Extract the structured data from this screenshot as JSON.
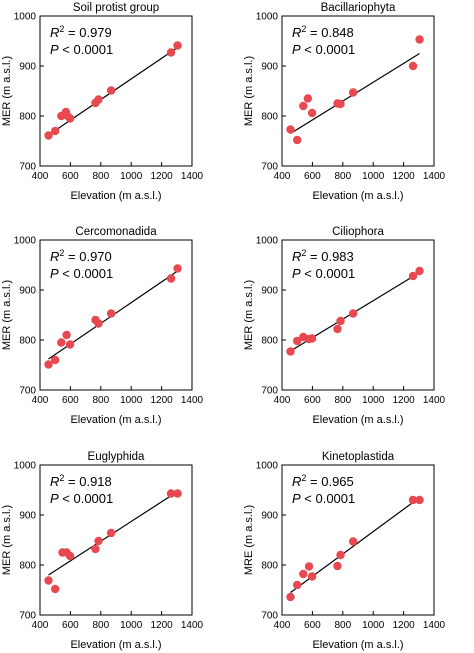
{
  "colors": {
    "point": "#e8484f",
    "line": "#000000",
    "axis": "#000000"
  },
  "chart_data": [
    {
      "type": "scatter",
      "title": "Soil protist group",
      "xlabel": "Elevation  (m a.s.l.)",
      "ylabel": "MER  (m a.s.l.)",
      "r2_label": "= 0.979",
      "p_label": "< 0.0001",
      "xlim": [
        400,
        1400
      ],
      "ylim": [
        700,
        1000
      ],
      "xticks": [
        "400",
        "600",
        "800",
        "1000",
        "1200",
        "1400"
      ],
      "yticks": [
        "700",
        "800",
        "900",
        "1000"
      ],
      "x": [
        456,
        500,
        540,
        570,
        578,
        598,
        765,
        785,
        868,
        1262,
        1305
      ],
      "y": [
        761,
        770,
        800,
        808,
        801,
        795,
        826,
        833,
        851,
        927,
        941
      ],
      "fit": {
        "x": [
          456,
          1305
        ],
        "y": [
          762,
          937
        ]
      }
    },
    {
      "type": "scatter",
      "title": "Bacillariophyta",
      "xlabel": "Elevation  (m a.s.l.)",
      "ylabel": "MER  (m a.s.l.)",
      "r2_label": "= 0.848",
      "p_label": "< 0.0001",
      "xlim": [
        400,
        1400
      ],
      "ylim": [
        700,
        1000
      ],
      "xticks": [
        "400",
        "600",
        "800",
        "1000",
        "1200",
        "1400"
      ],
      "yticks": [
        "700",
        "800",
        "900",
        "1000"
      ],
      "x": [
        456,
        500,
        540,
        570,
        598,
        765,
        785,
        868,
        1262,
        1305
      ],
      "y": [
        773,
        752,
        820,
        835,
        806,
        825,
        824,
        847,
        900,
        953
      ],
      "fit": {
        "x": [
          456,
          1305
        ],
        "y": [
          765,
          925
        ]
      }
    },
    {
      "type": "scatter",
      "title": "Cercomonadida",
      "xlabel": "Elevation  (m a.s.l.)",
      "ylabel": "MER  (m a.s.l.)",
      "r2_label": "= 0.970",
      "p_label": "< 0.0001",
      "xlim": [
        400,
        1400
      ],
      "ylim": [
        700,
        1000
      ],
      "xticks": [
        "400",
        "600",
        "800",
        "1000",
        "1200",
        "1400"
      ],
      "yticks": [
        "700",
        "800",
        "900",
        "1000"
      ],
      "x": [
        456,
        500,
        540,
        575,
        598,
        765,
        785,
        868,
        1262,
        1305
      ],
      "y": [
        751,
        760,
        795,
        810,
        791,
        840,
        833,
        853,
        923,
        943
      ],
      "fit": {
        "x": [
          456,
          1305
        ],
        "y": [
          762,
          938
        ]
      }
    },
    {
      "type": "scatter",
      "title": "Ciliophora",
      "xlabel": "Elevation  (m a.s.l.)",
      "ylabel": "MER  (m a.s.l.)",
      "r2_label": "= 0.983",
      "p_label": "< 0.0001",
      "xlim": [
        400,
        1400
      ],
      "ylim": [
        700,
        1000
      ],
      "xticks": [
        "400",
        "600",
        "800",
        "1000",
        "1200",
        "1400"
      ],
      "yticks": [
        "700",
        "800",
        "900",
        "1000"
      ],
      "x": [
        456,
        500,
        540,
        578,
        598,
        765,
        785,
        868,
        1262,
        1305
      ],
      "y": [
        777,
        798,
        806,
        802,
        803,
        822,
        838,
        853,
        928,
        938
      ],
      "fit": {
        "x": [
          456,
          1305
        ],
        "y": [
          778,
          935
        ]
      }
    },
    {
      "type": "scatter",
      "title": "Euglyphida",
      "xlabel": "Elevation  (m a.s.l.)",
      "ylabel": "MER  (m a.s.l.)",
      "r2_label": "= 0.918",
      "p_label": "< 0.0001",
      "xlim": [
        400,
        1400
      ],
      "ylim": [
        700,
        1000
      ],
      "xticks": [
        "400",
        "600",
        "800",
        "1000",
        "1200",
        "1400"
      ],
      "yticks": [
        "700",
        "800",
        "900",
        "1000"
      ],
      "x": [
        456,
        500,
        548,
        575,
        598,
        765,
        785,
        868,
        1262,
        1305
      ],
      "y": [
        769,
        752,
        825,
        825,
        818,
        832,
        848,
        864,
        943,
        943
      ],
      "fit": {
        "x": [
          456,
          1305
        ],
        "y": [
          780,
          947
        ]
      }
    },
    {
      "type": "scatter",
      "title": "Kinetoplastida",
      "xlabel": "Elevation  (m a.s.l.)",
      "ylabel": "MRE  (m a.s.l.)",
      "r2_label": "= 0.965",
      "p_label": "< 0.0001",
      "xlim": [
        400,
        1400
      ],
      "ylim": [
        700,
        1000
      ],
      "xticks": [
        "400",
        "600",
        "800",
        "1000",
        "1200",
        "1400"
      ],
      "yticks": [
        "700",
        "800",
        "900",
        "1000"
      ],
      "x": [
        456,
        500,
        540,
        578,
        598,
        765,
        785,
        868,
        1262,
        1305
      ],
      "y": [
        736,
        760,
        782,
        797,
        777,
        798,
        820,
        847,
        930,
        930
      ],
      "fit": {
        "x": [
          456,
          1305
        ],
        "y": [
          745,
          935
        ]
      }
    }
  ]
}
